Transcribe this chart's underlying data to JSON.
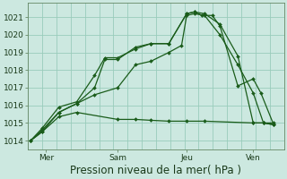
{
  "background_color": "#cce8e0",
  "grid_color": "#99ccbb",
  "line_color": "#1a5c1a",
  "marker_color": "#1a5c1a",
  "ylim": [
    1013.5,
    1021.8
  ],
  "yticks": [
    1014,
    1015,
    1016,
    1017,
    1018,
    1019,
    1020,
    1021
  ],
  "xlabel": "Pression niveau de la mer( hPa )",
  "xlabel_fontsize": 8.5,
  "tick_fontsize": 6.5,
  "xtick_labels": [
    "Mer",
    "Sam",
    "Jeu",
    "Ven"
  ],
  "xtick_positions": [
    0.07,
    0.35,
    0.62,
    0.88
  ],
  "series": [
    {
      "x": [
        0.01,
        0.055,
        0.12,
        0.19,
        0.35,
        0.42,
        0.48,
        0.55,
        0.62,
        0.69,
        0.88,
        0.92,
        0.96
      ],
      "y": [
        1014.0,
        1014.5,
        1015.35,
        1015.6,
        1015.2,
        1015.2,
        1015.15,
        1015.1,
        1015.1,
        1015.1,
        1015.0,
        1015.0,
        1015.0
      ]
    },
    {
      "x": [
        0.01,
        0.055,
        0.12,
        0.19,
        0.26,
        0.35,
        0.42,
        0.48,
        0.55,
        0.6,
        0.62,
        0.65,
        0.69,
        0.75,
        0.82,
        0.88,
        0.92,
        0.96
      ],
      "y": [
        1014.0,
        1014.5,
        1015.6,
        1016.1,
        1016.6,
        1017.0,
        1018.3,
        1018.5,
        1019.0,
        1019.4,
        1021.1,
        1021.2,
        1021.1,
        1020.0,
        1018.3,
        1016.7,
        1015.0,
        1014.9
      ]
    },
    {
      "x": [
        0.01,
        0.055,
        0.12,
        0.19,
        0.26,
        0.3,
        0.35,
        0.42,
        0.48,
        0.55,
        0.62,
        0.65,
        0.68,
        0.72,
        0.75,
        0.82,
        0.88,
        0.91,
        0.96
      ],
      "y": [
        1014.0,
        1014.6,
        1015.6,
        1016.1,
        1017.0,
        1018.6,
        1018.6,
        1019.3,
        1019.5,
        1019.5,
        1021.2,
        1021.3,
        1021.1,
        1021.1,
        1020.5,
        1017.1,
        1017.5,
        1016.7,
        1014.9
      ]
    },
    {
      "x": [
        0.01,
        0.055,
        0.12,
        0.19,
        0.26,
        0.3,
        0.35,
        0.42,
        0.48,
        0.55,
        0.62,
        0.65,
        0.69,
        0.75,
        0.82,
        0.88,
        0.92,
        0.96
      ],
      "y": [
        1014.0,
        1014.7,
        1015.9,
        1016.2,
        1017.7,
        1018.7,
        1018.7,
        1019.2,
        1019.5,
        1019.5,
        1021.2,
        1021.3,
        1021.2,
        1020.6,
        1018.8,
        1015.0,
        1015.0,
        1014.9
      ]
    }
  ]
}
